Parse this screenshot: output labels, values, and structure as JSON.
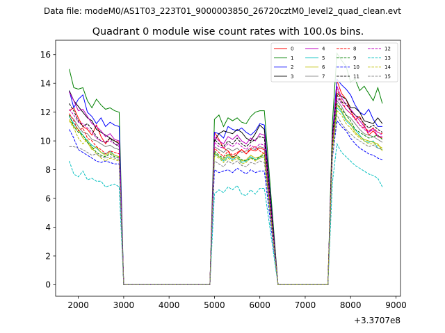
{
  "suptitle": "Data file: modeM0/AS1T03_223T01_9000003850_26720cztM0_level2_quad_clean.evt",
  "chart_data": {
    "type": "line",
    "title": "Quadrant 0 module wise count rates with 100.0s bins.",
    "xlabel": "",
    "ylabel": "",
    "x_offset_label": "+3.3707e8",
    "xlim": [
      1500,
      9100
    ],
    "ylim": [
      -0.8,
      17
    ],
    "xticks": [
      2000,
      3000,
      4000,
      5000,
      6000,
      7000,
      8000,
      9000
    ],
    "xtick_labels": [
      "2000",
      "3000",
      "4000",
      "5000",
      "6000",
      "7000",
      "8000",
      "9000"
    ],
    "yticks": [
      0,
      2,
      4,
      6,
      8,
      10,
      12,
      14,
      16
    ],
    "ytick_labels": [
      "0",
      "2",
      "4",
      "6",
      "8",
      "10",
      "12",
      "14",
      "16"
    ],
    "grid": false,
    "legend_location": "top-right",
    "legend_columns": 4,
    "segments": [
      {
        "start": 1800,
        "count": 12,
        "end_drop": 3000,
        "zero_until": 4900
      },
      {
        "start": 5000,
        "count": 12,
        "end_drop": 6400,
        "zero_until": 7500
      },
      {
        "start": 7600,
        "count": 12
      }
    ],
    "series": [
      {
        "name": "0",
        "color": "#ff0000",
        "dash": "solid",
        "values": [
          [
            12.1,
            12.3,
            11.6,
            11.0,
            10.8,
            10.4,
            11.1,
            10.3,
            9.8,
            10.2,
            10.0,
            9.9
          ],
          [
            10.6,
            10.1,
            9.5,
            9.3,
            8.8,
            9.1,
            9.4,
            9.1,
            9.4,
            9.3,
            9.5,
            9.4
          ],
          [
            10.5,
            14.2,
            13.3,
            12.9,
            12.1,
            11.5,
            11.7,
            11.1,
            10.4,
            10.7,
            10.3,
            10.2
          ]
        ]
      },
      {
        "name": "1",
        "color": "#008000",
        "dash": "solid",
        "values": [
          [
            15.0,
            13.7,
            13.6,
            13.7,
            12.8,
            12.3,
            12.9,
            12.5,
            12.2,
            12.3,
            12.1,
            12.0
          ],
          [
            11.5,
            11.8,
            11.0,
            11.6,
            11.4,
            11.6,
            11.3,
            11.2,
            11.7,
            12.0,
            12.1,
            12.1
          ],
          [
            11.3,
            16.1,
            15.6,
            15.2,
            14.1,
            14.3,
            13.5,
            13.8,
            13.3,
            12.8,
            13.7,
            12.6
          ]
        ]
      },
      {
        "name": "2",
        "color": "#0000ff",
        "dash": "solid",
        "values": [
          [
            13.5,
            12.3,
            12.9,
            13.2,
            12.0,
            11.7,
            11.2,
            11.6,
            11.0,
            11.3,
            11.1,
            11.0
          ],
          [
            10.6,
            10.5,
            10.2,
            11.0,
            10.8,
            10.7,
            10.9,
            10.6,
            10.4,
            10.7,
            11.2,
            11.1
          ],
          [
            10.4,
            14.3,
            13.9,
            13.6,
            13.2,
            12.5,
            12.0,
            11.8,
            12.2,
            11.5,
            11.0,
            11.0
          ]
        ]
      },
      {
        "name": "3",
        "color": "#000000",
        "dash": "solid",
        "values": [
          [
            13.5,
            12.8,
            12.4,
            12.0,
            11.6,
            11.4,
            10.8,
            10.6,
            10.4,
            10.2,
            10.0,
            9.8
          ],
          [
            10.0,
            10.5,
            10.7,
            10.6,
            10.5,
            10.8,
            10.6,
            10.2,
            10.0,
            10.5,
            11.1,
            10.8
          ],
          [
            10.3,
            13.3,
            13.1,
            12.9,
            12.3,
            12.3,
            12.0,
            11.4,
            11.3,
            11.2,
            11.6,
            11.2
          ]
        ]
      },
      {
        "name": "4",
        "color": "#bf00bf",
        "dash": "solid",
        "values": [
          [
            13.4,
            12.8,
            12.1,
            12.2,
            11.7,
            11.2,
            11.0,
            10.7,
            10.3,
            10.5,
            10.1,
            10.0
          ],
          [
            10.3,
            10.0,
            9.8,
            10.3,
            10.1,
            10.4,
            10.0,
            9.8,
            10.2,
            10.0,
            10.5,
            10.4
          ],
          [
            10.2,
            13.8,
            13.0,
            12.5,
            12.2,
            11.8,
            11.4,
            11.0,
            10.6,
            10.9,
            10.3,
            10.3
          ]
        ]
      },
      {
        "name": "5",
        "color": "#00bfbf",
        "dash": "solid",
        "values": [
          [
            11.7,
            11.2,
            10.8,
            10.4,
            10.0,
            9.7,
            9.5,
            9.2,
            9.1,
            9.3,
            9.0,
            8.9
          ],
          [
            9.1,
            8.9,
            8.6,
            8.9,
            8.7,
            8.9,
            8.5,
            8.6,
            8.9,
            8.7,
            8.8,
            8.9
          ],
          [
            9.5,
            12.3,
            12.0,
            11.4,
            11.1,
            10.8,
            10.4,
            10.0,
            9.9,
            10.0,
            9.5,
            9.4
          ]
        ]
      },
      {
        "name": "6",
        "color": "#bfbf00",
        "dash": "solid",
        "values": [
          [
            11.5,
            11.0,
            10.8,
            10.2,
            9.9,
            9.4,
            9.6,
            9.2,
            9.0,
            9.2,
            9.0,
            8.9
          ],
          [
            9.2,
            8.9,
            8.7,
            9.0,
            8.8,
            8.9,
            8.6,
            8.7,
            9.0,
            8.8,
            8.9,
            9.2
          ],
          [
            9.6,
            12.5,
            12.1,
            11.5,
            11.2,
            10.6,
            10.3,
            10.1,
            10.0,
            9.9,
            9.8,
            9.3
          ]
        ]
      },
      {
        "name": "7",
        "color": "#808080",
        "dash": "solid",
        "values": [
          [
            11.8,
            11.5,
            11.0,
            10.6,
            10.5,
            10.1,
            10.0,
            9.8,
            9.6,
            9.7,
            9.5,
            9.4
          ],
          [
            9.6,
            9.4,
            9.2,
            9.5,
            9.3,
            9.5,
            9.2,
            9.3,
            9.5,
            9.4,
            9.6,
            9.5
          ],
          [
            9.8,
            12.8,
            12.4,
            11.8,
            11.6,
            11.2,
            10.8,
            10.5,
            10.4,
            10.3,
            10.1,
            9.9
          ]
        ]
      },
      {
        "name": "8",
        "color": "#ff0000",
        "dash": "dashed",
        "values": [
          [
            11.9,
            11.4,
            10.7,
            10.9,
            10.2,
            10.0,
            9.6,
            9.4,
            9.1,
            9.3,
            9.2,
            9.1
          ],
          [
            9.5,
            9.2,
            8.9,
            9.3,
            9.0,
            9.2,
            9.4,
            9.1,
            9.5,
            9.6,
            9.3,
            9.1
          ],
          [
            9.9,
            13.6,
            12.8,
            12.2,
            11.9,
            11.6,
            11.1,
            10.9,
            10.7,
            10.9,
            10.6,
            10.5
          ]
        ]
      },
      {
        "name": "9",
        "color": "#008000",
        "dash": "dashed",
        "values": [
          [
            11.8,
            11.0,
            10.6,
            10.4,
            9.9,
            9.6,
            9.2,
            9.0,
            8.9,
            9.1,
            8.9,
            8.8
          ],
          [
            9.3,
            9.0,
            8.8,
            9.1,
            8.9,
            9.0,
            8.7,
            8.6,
            8.8,
            8.7,
            8.9,
            9.0
          ],
          [
            9.4,
            12.6,
            12.2,
            11.8,
            11.4,
            10.8,
            10.6,
            10.4,
            10.2,
            10.3,
            10.4,
            10.1
          ]
        ]
      },
      {
        "name": "10",
        "color": "#0000ff",
        "dash": "dashed",
        "values": [
          [
            10.8,
            10.2,
            9.4,
            9.2,
            9.0,
            8.8,
            8.6,
            8.5,
            8.6,
            8.5,
            8.4,
            8.4
          ],
          [
            8.0,
            7.8,
            7.9,
            8.0,
            7.8,
            8.1,
            7.9,
            7.7,
            8.0,
            7.8,
            7.9,
            7.9
          ],
          [
            8.8,
            11.4,
            11.0,
            10.7,
            10.2,
            9.8,
            9.5,
            9.3,
            9.1,
            9.0,
            8.8,
            8.7
          ]
        ]
      },
      {
        "name": "11",
        "color": "#000000",
        "dash": "dashed",
        "values": [
          [
            12.6,
            12.1,
            11.4,
            11.0,
            11.2,
            10.8,
            10.3,
            10.0,
            9.9,
            10.2,
            9.8,
            9.6
          ],
          [
            10.1,
            9.8,
            9.6,
            10.0,
            9.8,
            10.2,
            9.8,
            9.6,
            9.9,
            10.1,
            10.3,
            10.2
          ],
          [
            10.4,
            13.2,
            12.7,
            12.6,
            12.1,
            11.8,
            11.6,
            11.2,
            10.9,
            11.1,
            10.8,
            10.6
          ]
        ]
      },
      {
        "name": "12",
        "color": "#bf00bf",
        "dash": "dashed",
        "values": [
          [
            12.2,
            11.8,
            11.3,
            11.2,
            10.9,
            10.6,
            10.2,
            10.0,
            9.9,
            10.0,
            9.8,
            9.7
          ],
          [
            9.9,
            9.6,
            9.5,
            9.8,
            9.6,
            9.9,
            9.6,
            9.4,
            9.7,
            9.5,
            9.8,
            9.7
          ],
          [
            10.1,
            13.0,
            12.6,
            12.2,
            11.9,
            11.5,
            11.1,
            10.8,
            10.6,
            10.8,
            10.6,
            10.4
          ]
        ]
      },
      {
        "name": "13",
        "color": "#00bfbf",
        "dash": "dashed",
        "values": [
          [
            8.6,
            7.7,
            7.5,
            7.9,
            7.3,
            7.4,
            7.2,
            7.2,
            6.8,
            6.9,
            7.0,
            6.8
          ],
          [
            6.3,
            6.6,
            6.4,
            6.8,
            6.6,
            6.9,
            6.3,
            6.2,
            6.6,
            6.3,
            6.7,
            6.7
          ],
          [
            7.1,
            9.8,
            9.2,
            8.9,
            8.6,
            8.3,
            8.1,
            7.9,
            7.7,
            7.6,
            7.4,
            6.8
          ]
        ]
      },
      {
        "name": "14",
        "color": "#bfbf00",
        "dash": "dashed",
        "values": [
          [
            11.4,
            10.9,
            10.2,
            9.8,
            10.1,
            9.5,
            9.1,
            8.8,
            8.6,
            8.8,
            8.7,
            8.6
          ],
          [
            9.0,
            8.8,
            8.5,
            8.8,
            8.6,
            8.8,
            8.4,
            8.5,
            8.8,
            8.6,
            8.8,
            8.9
          ],
          [
            9.4,
            12.1,
            11.8,
            11.2,
            10.9,
            10.5,
            10.2,
            10.0,
            9.8,
            9.8,
            9.7,
            9.5
          ]
        ]
      },
      {
        "name": "15",
        "color": "#808080",
        "dash": "dashed",
        "values": [
          [
            9.6,
            9.6,
            9.5,
            9.4,
            9.2,
            9.0,
            9.1,
            8.9,
            8.8,
            8.9,
            8.8,
            8.7
          ],
          [
            8.6,
            8.4,
            8.2,
            8.6,
            8.4,
            8.6,
            8.3,
            8.2,
            8.5,
            8.4,
            8.6,
            8.5
          ],
          [
            8.9,
            11.8,
            11.2,
            10.8,
            10.5,
            10.2,
            10.0,
            9.8,
            9.6,
            9.7,
            9.5,
            9.4
          ]
        ]
      }
    ]
  }
}
